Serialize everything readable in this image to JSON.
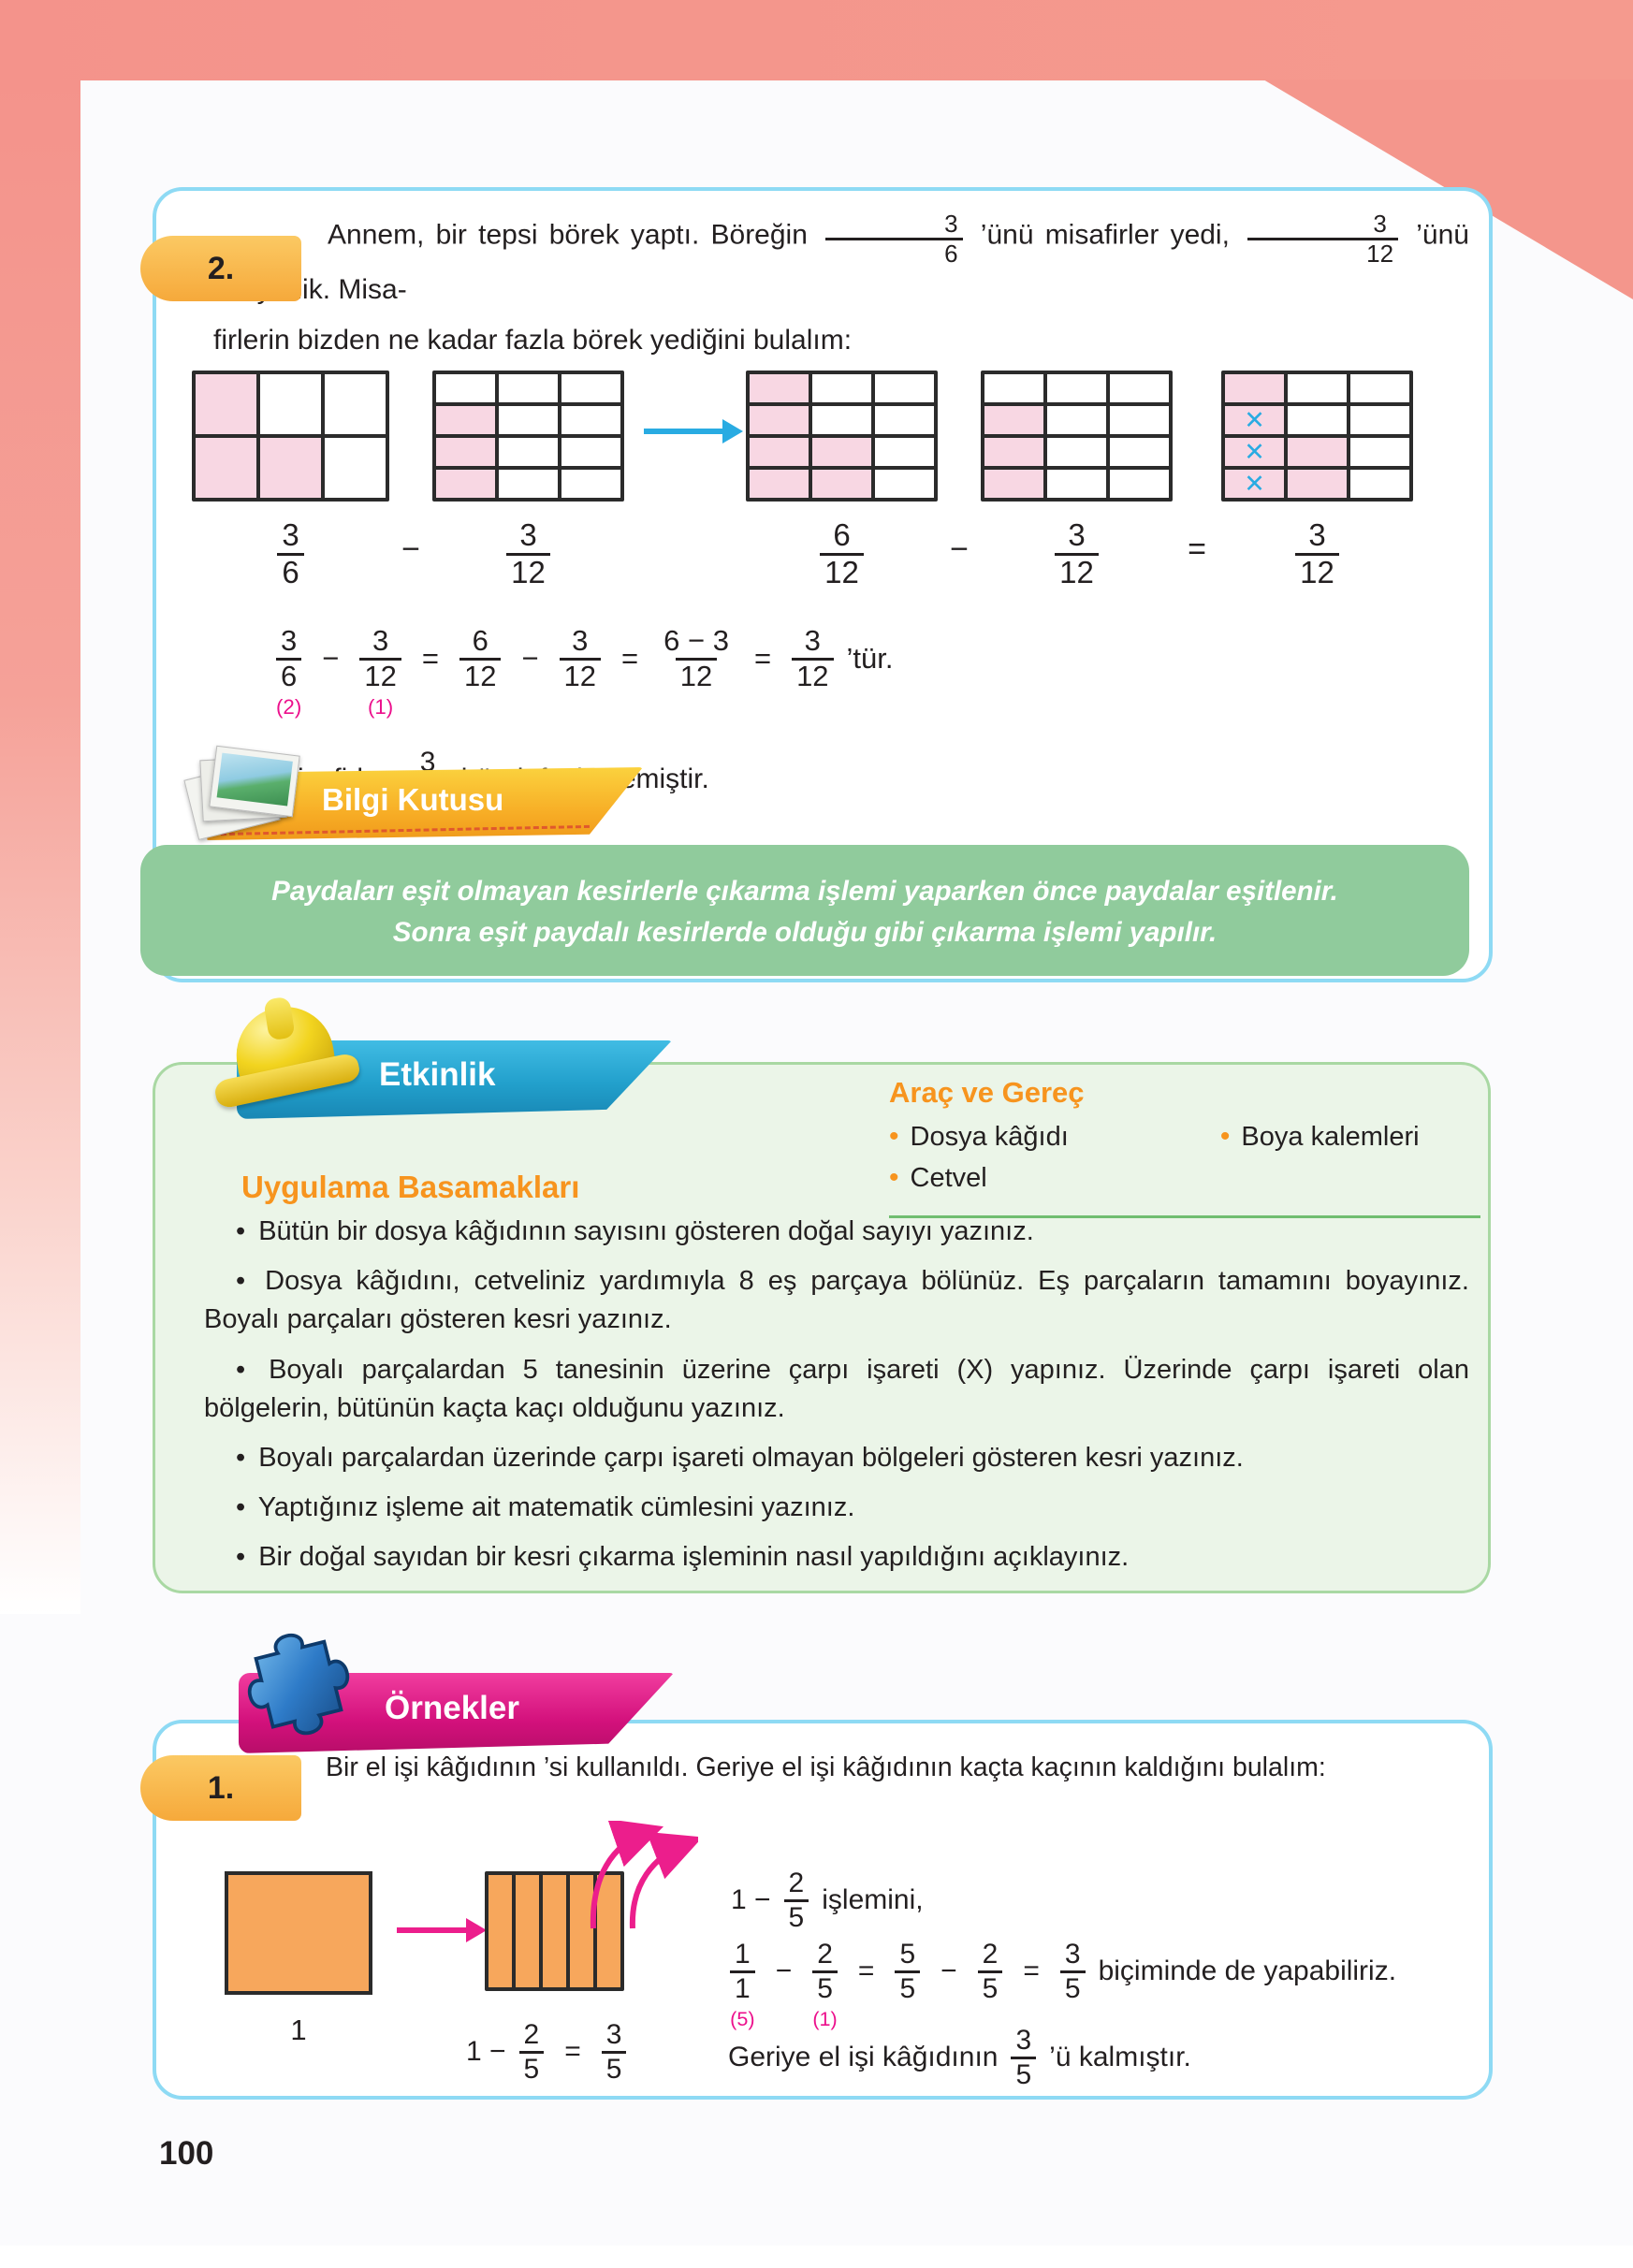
{
  "glyphs": {
    "x_mark": "✕",
    "bullet": "•"
  },
  "colors": {
    "salmon_frame": "#F4938B",
    "blue_box_border": "#8EDAF4",
    "shaded_cell_pink": "#F8D7E3",
    "cross_blue": "#29ABE2",
    "annotation_pink": "#EC108C",
    "info_box_green": "#90CB9C",
    "activity_box_green": "#EBF5E8",
    "heading_orange": "#F7941E",
    "ribbon_gold": "#F7AC25",
    "ribbon_blue": "#22A0CC",
    "ribbon_magenta": "#D3117C",
    "rect_orange": "#F7A75C"
  },
  "page_number": "100",
  "problem2": {
    "tab": "2.",
    "t1": "Annem, bir tepsi börek yaptı. Böreğin",
    "t2": "’ünü misafirler yedi,",
    "t3": "’ünü biz yedik. Misa-",
    "t4": "firlerin bizden ne kadar fazla börek yediğini bulalım:"
  },
  "grid_ops": {
    "minus": "−",
    "equals": "="
  },
  "grids": {
    "g36": {
      "cols": 3,
      "rows": 2,
      "cellw": 65,
      "cellh": 64,
      "cells": [
        "s",
        "p",
        "p",
        "s",
        "s",
        "p"
      ]
    },
    "g312a": {
      "cols": 3,
      "rows": 4,
      "cellw": 63,
      "cellh": 30,
      "cells": [
        "p",
        "p",
        "p",
        "s",
        "p",
        "p",
        "s",
        "p",
        "p",
        "s",
        "p",
        "p"
      ]
    },
    "g612": {
      "cols": 3,
      "rows": 4,
      "cellw": 63,
      "cellh": 30,
      "cells": [
        "s",
        "p",
        "p",
        "s",
        "p",
        "p",
        "s",
        "s",
        "p",
        "s",
        "s",
        "p"
      ]
    },
    "g312b": {
      "cols": 3,
      "rows": 4,
      "cellw": 63,
      "cellh": 30,
      "cells": [
        "p",
        "p",
        "p",
        "s",
        "p",
        "p",
        "s",
        "p",
        "p",
        "s",
        "p",
        "p"
      ]
    },
    "gres": {
      "cols": 3,
      "rows": 4,
      "cellw": 63,
      "cellh": 30,
      "cells": [
        "s",
        "p",
        "p",
        "x",
        "p",
        "p",
        "x",
        "s",
        "p",
        "x",
        "s",
        "p"
      ]
    },
    "strip": {
      "cols": 5,
      "rows": 1,
      "cellw": 25,
      "cellh": 120,
      "cells": [
        "o",
        "o",
        "o",
        "o",
        "o"
      ]
    }
  },
  "equations": {
    "p2_f1": [
      {
        "t": "frac",
        "n": "3",
        "d": "6"
      }
    ],
    "p2_f2": [
      {
        "t": "frac",
        "n": "3",
        "d": "12"
      }
    ],
    "lbl_g1": [
      {
        "t": "frac",
        "n": "3",
        "d": "6"
      }
    ],
    "lbl_g2": [
      {
        "t": "frac",
        "n": "3",
        "d": "12"
      }
    ],
    "lbl_g3": [
      {
        "t": "frac",
        "n": "6",
        "d": "12"
      }
    ],
    "lbl_g4": [
      {
        "t": "frac",
        "n": "3",
        "d": "12"
      }
    ],
    "lbl_g5": [
      {
        "t": "frac",
        "n": "3",
        "d": "12"
      }
    ],
    "eq_main": [
      {
        "t": "frac",
        "n": "3",
        "d": "6",
        "sub": "(2)"
      },
      {
        "t": "op",
        "v": "−"
      },
      {
        "t": "frac",
        "n": "3",
        "d": "12",
        "sub": "(1)"
      },
      {
        "t": "op",
        "v": "="
      },
      {
        "t": "frac",
        "n": "6",
        "d": "12"
      },
      {
        "t": "op",
        "v": "−"
      },
      {
        "t": "frac",
        "n": "3",
        "d": "12"
      },
      {
        "t": "op",
        "v": "="
      },
      {
        "t": "frac",
        "n": "6 − 3",
        "d": "12"
      },
      {
        "t": "op",
        "v": "="
      },
      {
        "t": "frac",
        "n": "3",
        "d": "12"
      },
      {
        "t": "txt",
        "v": "’tür."
      }
    ],
    "eq_misafir": [
      {
        "t": "txt",
        "v": "Misafirler,"
      },
      {
        "t": "frac",
        "n": "3",
        "d": "12"
      },
      {
        "t": "txt",
        "v": "börek fazla yemiştir."
      }
    ],
    "eq_islemini": [
      {
        "t": "txt",
        "v": "1 −"
      },
      {
        "t": "frac",
        "n": "2",
        "d": "5"
      },
      {
        "t": "txt",
        "v": "işlemini,"
      }
    ],
    "eq_bicim": [
      {
        "t": "frac",
        "n": "1",
        "d": "1",
        "sub": "(5)"
      },
      {
        "t": "op",
        "v": "−"
      },
      {
        "t": "frac",
        "n": "2",
        "d": "5",
        "sub": "(1)"
      },
      {
        "t": "op",
        "v": "="
      },
      {
        "t": "frac",
        "n": "5",
        "d": "5"
      },
      {
        "t": "op",
        "v": "−"
      },
      {
        "t": "frac",
        "n": "2",
        "d": "5"
      },
      {
        "t": "op",
        "v": "="
      },
      {
        "t": "frac",
        "n": "3",
        "d": "5"
      },
      {
        "t": "txt",
        "v": "biçiminde de yapabiliriz."
      }
    ],
    "eq_geriye": [
      {
        "t": "txt",
        "v": "Geriye el işi kâğıdının"
      },
      {
        "t": "frac",
        "n": "3",
        "d": "5"
      },
      {
        "t": "txt",
        "v": "’ü kalmıştır."
      }
    ],
    "eq_strip": [
      {
        "t": "txt",
        "v": "1 −"
      },
      {
        "t": "frac",
        "n": "2",
        "d": "5"
      },
      {
        "t": "op",
        "v": "="
      },
      {
        "t": "frac",
        "n": "3",
        "d": "5"
      }
    ]
  },
  "bilgi": {
    "title": "Bilgi Kutusu",
    "line1": "Paydaları eşit olmayan kesirlerle çıkarma işlemi yaparken önce paydalar eşitlenir.",
    "line2": "Sonra eşit paydalı kesirlerde olduğu gibi çıkarma işlemi yapılır."
  },
  "etkinlik": {
    "banner": "Etkinlik",
    "arac_title": "Araç ve Gereç",
    "arac_items": [
      "Dosya kâğıdı",
      "Boya kalemleri",
      "Cetvel"
    ],
    "steps_title": "Uygulama Basamakları",
    "steps": [
      "Bütün bir dosya kâğıdının sayısını gösteren doğal sayıyı yazınız.",
      "Dosya kâğıdını, cetveliniz yardımıyla 8 eş parçaya bölünüz. Eş parçaların tamamını boyayınız. Boyalı parçaları gösteren kesri yazınız.",
      "Boyalı parçalardan 5 tanesinin üzerine çarpı işareti (X) yapınız. Üzerinde çarpı işareti olan bölgelerin, bütünün kaçta kaçı olduğunu yazınız.",
      "Boyalı parçalardan üzerinde çarpı işareti olmayan bölgeleri gösteren kesri yazınız.",
      "Yaptığınız işleme ait matematik cümlesini yazınız.",
      "Bir doğal sayıdan bir kesri çıkarma işleminin nasıl yapıldığını açıklayınız."
    ]
  },
  "ornekler": {
    "banner": "Örnekler"
  },
  "problem1": {
    "tab": "1.",
    "t1": "Bir el işi kâğıdının",
    "t2": "’si kullanıldı. Geriye el işi kâğıdının kaçta kaçının kaldığını bulalım:",
    "rect1_label": "1"
  }
}
